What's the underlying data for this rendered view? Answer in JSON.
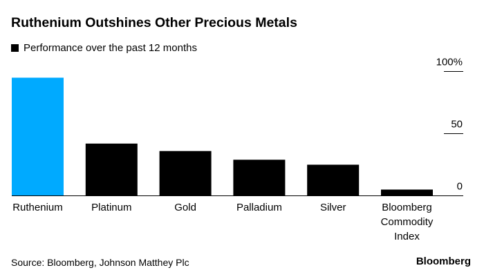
{
  "chart_data": {
    "type": "bar",
    "title": "Ruthenium Outshines Other Precious Metals",
    "legend": {
      "label": "Performance over the past 12 months",
      "color": "#000000",
      "placement": "top-left"
    },
    "categories": [
      "Ruthenium",
      "Platinum",
      "Gold",
      "Palladium",
      "Silver",
      "Bloomberg Commodity Index"
    ],
    "category_lines": [
      [
        "Ruthenium"
      ],
      [
        "Platinum"
      ],
      [
        "Gold"
      ],
      [
        "Palladium"
      ],
      [
        "Silver"
      ],
      [
        "Bloomberg",
        "Commodity",
        "Index"
      ]
    ],
    "values": [
      95,
      42,
      36,
      29,
      25,
      5
    ],
    "colors": [
      "#00aaff",
      "#000000",
      "#000000",
      "#000000",
      "#000000",
      "#000000"
    ],
    "ylim": [
      0,
      100
    ],
    "yticks": [
      {
        "value": 0,
        "label": "0"
      },
      {
        "value": 50,
        "label": "50"
      },
      {
        "value": 100,
        "label": "100%"
      }
    ],
    "yaxis_position": "right",
    "grid": false
  },
  "footer": {
    "source": "Source: Bloomberg, Johnson Matthey Plc",
    "logo": "Bloomberg"
  }
}
